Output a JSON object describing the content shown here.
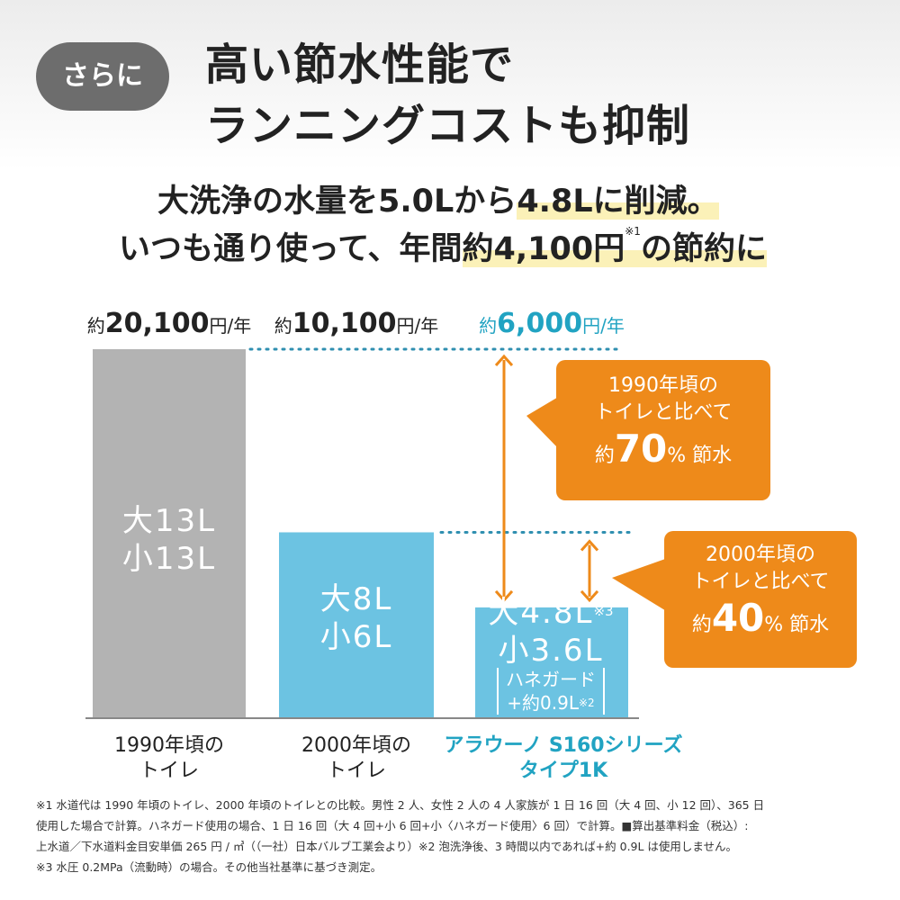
{
  "badge": "さらに",
  "headline": {
    "line1": "高い節水性能で",
    "line2": "ランニングコストも抑制"
  },
  "subhead": {
    "line1_a": "大洗浄の水量を5.0Lから",
    "line1_b": "4.8Lに削減。",
    "line2_a": "いつも通り使って、年間",
    "line2_b": "約4,100円",
    "line2_sup": "※1",
    "line2_c": "の節約に"
  },
  "chart_data": {
    "type": "bar",
    "categories": [
      "1990年頃のトイレ",
      "2000年頃のトイレ",
      "アラウーノ S160シリーズ タイプ1K"
    ],
    "category_lines": [
      [
        "1990年頃の",
        "トイレ"
      ],
      [
        "2000年頃の",
        "トイレ"
      ],
      [
        "アラウーノ S160シリーズ",
        "タイプ1K"
      ]
    ],
    "values": [
      20100,
      10100,
      6000
    ],
    "unit": "円/年",
    "price_labels": [
      {
        "prefix": "約",
        "amount": "20,100",
        "unit": "円/年"
      },
      {
        "prefix": "約",
        "amount": "10,100",
        "unit": "円/年"
      },
      {
        "prefix": "約",
        "amount": "6,000",
        "unit": "円/年"
      }
    ],
    "bar_text": [
      {
        "large": "大13L",
        "small": "小13L"
      },
      {
        "large": "大8L",
        "small": "小6L"
      },
      {
        "large": "大4.8L",
        "large_sup": "※3",
        "small": "小3.6L",
        "extra1": "ハネガード",
        "extra2": "+約0.9L",
        "extra2_sup": "※2"
      }
    ],
    "ylim": [
      0,
      20100
    ],
    "grid": false,
    "colors": {
      "bar1": "#b3b3b3",
      "bar2": "#6cc3e2",
      "bar3": "#6cc3e2",
      "highlight": "#21a3c2",
      "accent": "#ee8a1a",
      "dots": "#2f8fb0"
    }
  },
  "callouts": [
    {
      "line1": "1990年頃の",
      "line2": "トイレと比べて",
      "prefix": "約",
      "value": "70",
      "suffix": "% 節水"
    },
    {
      "line1": "2000年頃の",
      "line2": "トイレと比べて",
      "prefix": "約",
      "value": "40",
      "suffix": "% 節水"
    }
  ],
  "notes": [
    "※1 水道代は 1990 年頃のトイレ、2000 年頃のトイレとの比較。男性 2 人、女性 2 人の 4 人家族が 1 日 16 回（大 4 回、小 12 回）、365 日",
    "使用した場合で計算。ハネガード使用の場合、1 日 16 回（大 4 回+小 6 回+小〈ハネガード使用〉6 回）で計算。■算出基準料金（税込）:",
    "上水道／下水道料金目安単価 265 円 / ㎥（（一社）日本バルブ工業会より）※2 泡洗浄後、3 時間以内であれば+約 0.9L は使用しません。",
    "※3 水圧 0.2MPa（流動時）の場合。その他当社基準に基づき測定。"
  ]
}
